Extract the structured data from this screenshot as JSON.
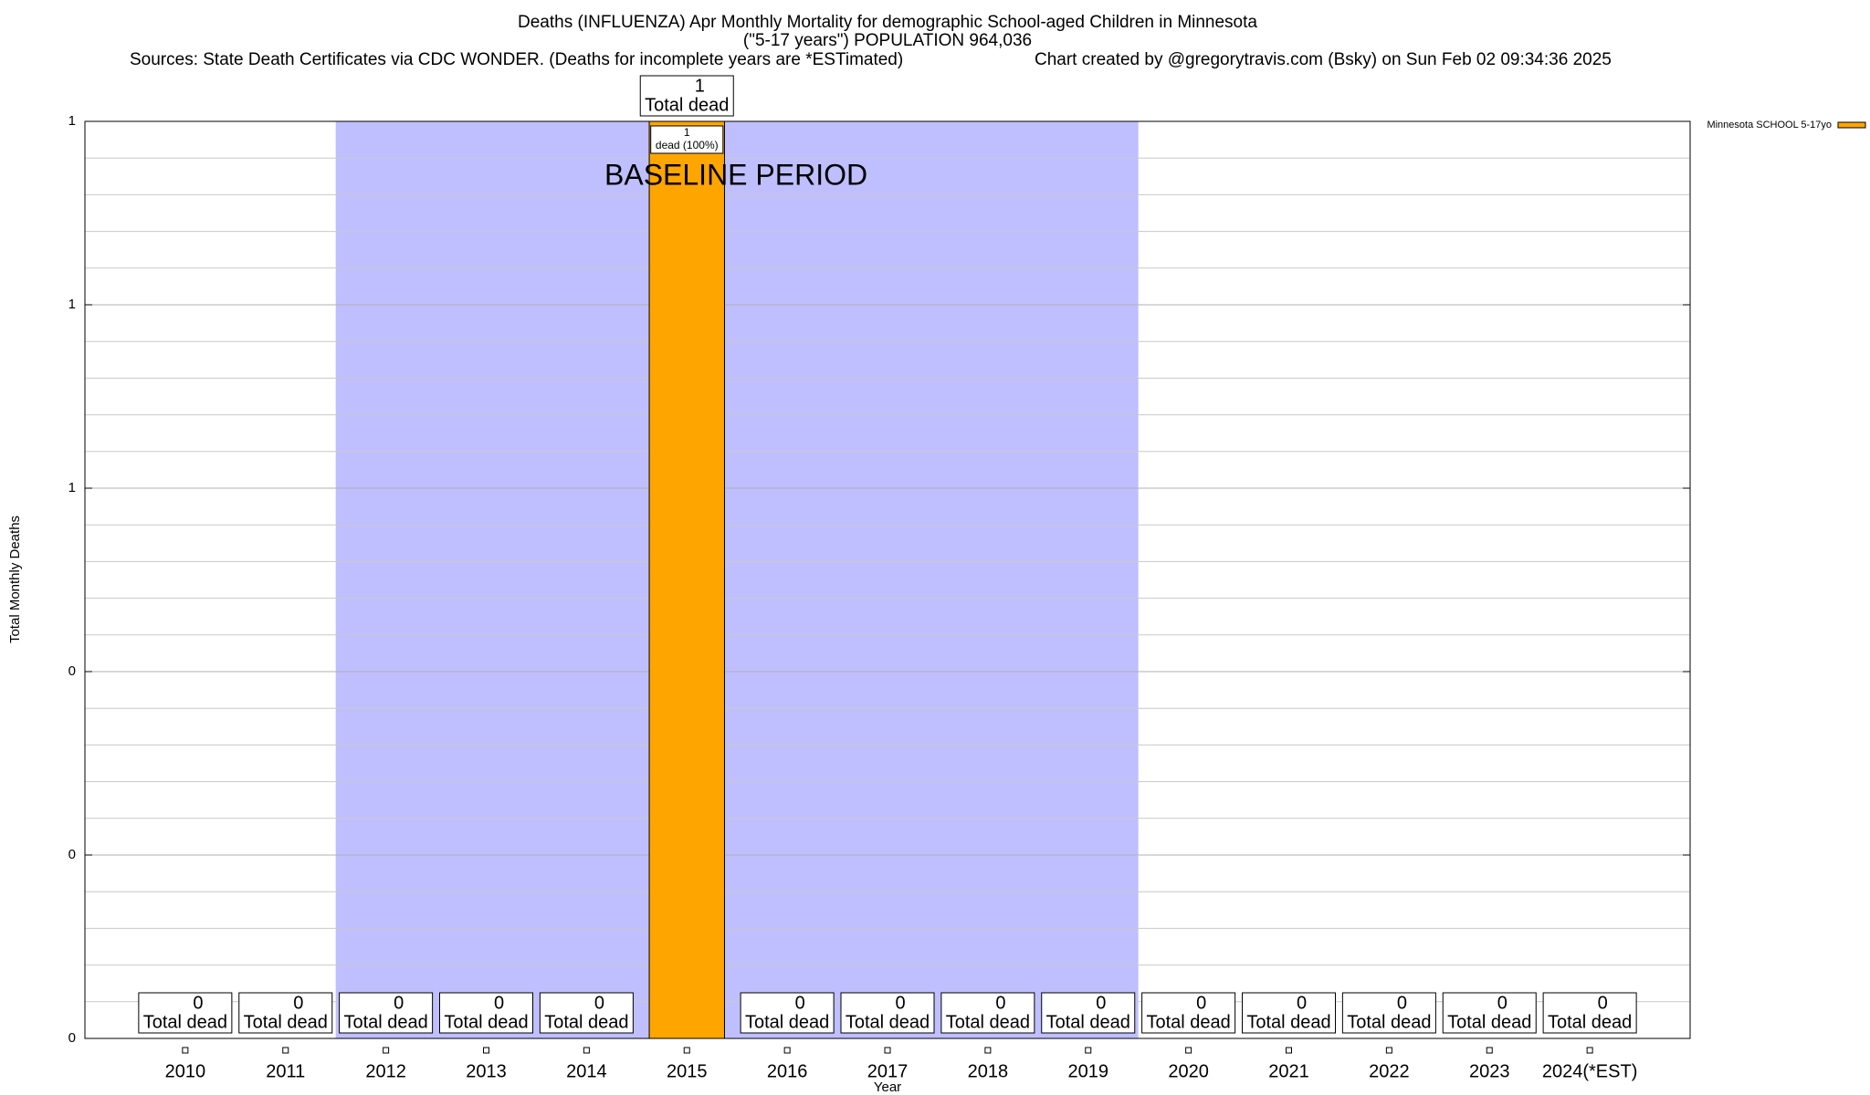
{
  "chart_data": {
    "type": "bar",
    "title": "Deaths (INFLUENZA) Apr Monthly Mortality for demographic School-aged Children in Minnesota",
    "subtitle": "(\"5-17 years\") POPULATION 964,036",
    "sources": "Sources: State Death Certificates via CDC WONDER. (Deaths for incomplete years are *ESTimated)",
    "credit": "Chart created by @gregorytravis.com (Bsky) on Sun Feb 02 09:34:36 2025",
    "x_label": "Year",
    "y_label": "Total Monthly Deaths",
    "categories": [
      "2010",
      "2011",
      "2012",
      "2013",
      "2014",
      "2015",
      "2016",
      "2017",
      "2018",
      "2019",
      "2020",
      "2021",
      "2022",
      "2023",
      "2024(*EST)"
    ],
    "series": [
      {
        "name": "Minnesota SCHOOL 5-17yo",
        "color": "#ffa500",
        "values": [
          0,
          0,
          0,
          0,
          0,
          1,
          0,
          0,
          0,
          0,
          0,
          0,
          0,
          0,
          0
        ]
      }
    ],
    "total_label": "Total dead",
    "segment_labels": [
      null,
      null,
      null,
      null,
      null,
      "dead (100%)",
      null,
      null,
      null,
      null,
      null,
      null,
      null,
      null,
      null
    ],
    "baseline": {
      "label": "BASELINE PERIOD",
      "start": "2012",
      "end": "2019",
      "color": "#bfbfff"
    },
    "ylim": [
      0,
      1
    ],
    "yticks": [
      0,
      {
        "value": 0.2,
        "label": "0"
      },
      {
        "value": 0.4,
        "label": "0"
      },
      {
        "value": 0.6,
        "label": "1"
      },
      {
        "value": 0.8,
        "label": "1"
      },
      1
    ],
    "yminor": [
      0.04,
      0.08,
      0.12,
      0.16,
      0.24,
      0.28,
      0.32,
      0.36,
      0.44,
      0.48,
      0.52,
      0.56,
      0.64,
      0.68,
      0.72,
      0.76,
      0.84,
      0.88,
      0.92,
      0.96
    ],
    "grid": true,
    "legend": "outside-top-right"
  }
}
